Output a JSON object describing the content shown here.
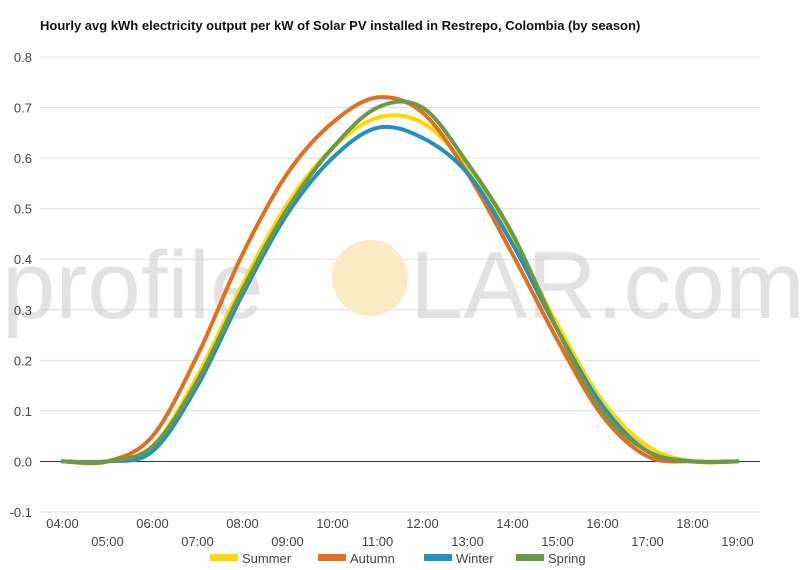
{
  "chart_data": {
    "type": "line",
    "title": "Hourly avg kWh electricity output per kW of Solar PV installed in Restrepo, Colombia (by season)",
    "xlabel": "",
    "ylabel": "",
    "ylim": [
      -0.1,
      0.8
    ],
    "yticks": [
      "-0.1",
      "0.0",
      "0.1",
      "0.2",
      "0.3",
      "0.4",
      "0.5",
      "0.6",
      "0.7",
      "0.8"
    ],
    "x": [
      "04:00",
      "05:00",
      "06:00",
      "07:00",
      "08:00",
      "09:00",
      "10:00",
      "11:00",
      "12:00",
      "13:00",
      "14:00",
      "15:00",
      "16:00",
      "17:00",
      "18:00",
      "19:00"
    ],
    "grid": true,
    "legend_position": "bottom",
    "series": [
      {
        "name": "Summer",
        "color": "#FFD700",
        "values": [
          0.0,
          0.0,
          0.03,
          0.17,
          0.35,
          0.51,
          0.62,
          0.68,
          0.67,
          0.58,
          0.44,
          0.27,
          0.12,
          0.03,
          0.0,
          0.0
        ]
      },
      {
        "name": "Autumn",
        "color": "#E07020",
        "values": [
          0.0,
          0.0,
          0.05,
          0.21,
          0.41,
          0.57,
          0.67,
          0.72,
          0.69,
          0.57,
          0.41,
          0.24,
          0.09,
          0.01,
          0.0,
          0.0
        ]
      },
      {
        "name": "Winter",
        "color": "#2290C0",
        "values": [
          0.0,
          0.0,
          0.02,
          0.15,
          0.33,
          0.49,
          0.6,
          0.66,
          0.64,
          0.57,
          0.43,
          0.26,
          0.11,
          0.02,
          0.0,
          0.0
        ]
      },
      {
        "name": "Spring",
        "color": "#6A9A48",
        "values": [
          0.0,
          0.0,
          0.03,
          0.16,
          0.34,
          0.5,
          0.62,
          0.7,
          0.7,
          0.59,
          0.45,
          0.26,
          0.1,
          0.02,
          0.0,
          0.0
        ]
      }
    ]
  },
  "watermark": {
    "prefix": "profile",
    "suffix": "LAR.com",
    "sun_color": "#FBEBC4"
  }
}
